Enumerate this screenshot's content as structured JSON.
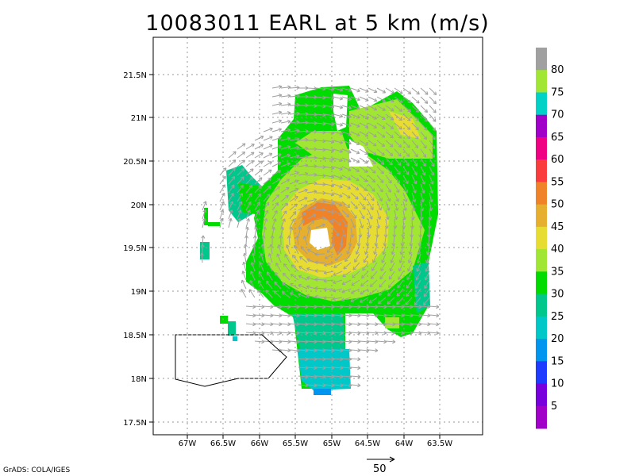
{
  "title": "10083011 EARL at 5 km (m/s)",
  "credit": "GrADS: COLA/IGES",
  "vector_reference": "50",
  "map": {
    "lon_range": [
      -67.35,
      -62.95
    ],
    "lat_range": [
      17.37,
      21.87
    ],
    "lat_ticks": [
      "21.5N",
      "21N",
      "20.5N",
      "20N",
      "19.5N",
      "19N",
      "18.5N",
      "18N",
      "17.5N"
    ],
    "lon_ticks": [
      "67W",
      "66.5W",
      "66W",
      "65.5W",
      "65W",
      "64.5W",
      "64W",
      "63.5W"
    ]
  },
  "colorbar": {
    "labels": [
      "80",
      "75",
      "70",
      "65",
      "60",
      "55",
      "50",
      "45",
      "40",
      "35",
      "30",
      "25",
      "20",
      "15",
      "10",
      "5"
    ],
    "colors": [
      "#a0a0a0",
      "#a0e632",
      "#00d2c8",
      "#a000c8",
      "#f00082",
      "#fa3c3c",
      "#f08228",
      "#e6af2d",
      "#e6dc32",
      "#a0e632",
      "#00dc00",
      "#00c88c",
      "#00c8c8",
      "#0096f0",
      "#1e3cff",
      "#7800dc",
      "#a000c8"
    ]
  },
  "chart_data": {
    "type": "heatmap",
    "title": "10083011 EARL at 5 km (m/s)",
    "storm": "EARL",
    "level": "5 km",
    "units": "m/s",
    "lon_ticks": [
      "67W",
      "66.5W",
      "66W",
      "65.5W",
      "65W",
      "64.5W",
      "64W",
      "63.5W"
    ],
    "lat_ticks": [
      "21.5N",
      "21N",
      "20.5N",
      "20N",
      "19.5N",
      "19N",
      "18.5N",
      "18N",
      "17.5N"
    ],
    "color_scale_labels": [
      5,
      10,
      15,
      20,
      25,
      30,
      35,
      40,
      45,
      50,
      55,
      60,
      65,
      70,
      75,
      80
    ],
    "grid": true
  }
}
